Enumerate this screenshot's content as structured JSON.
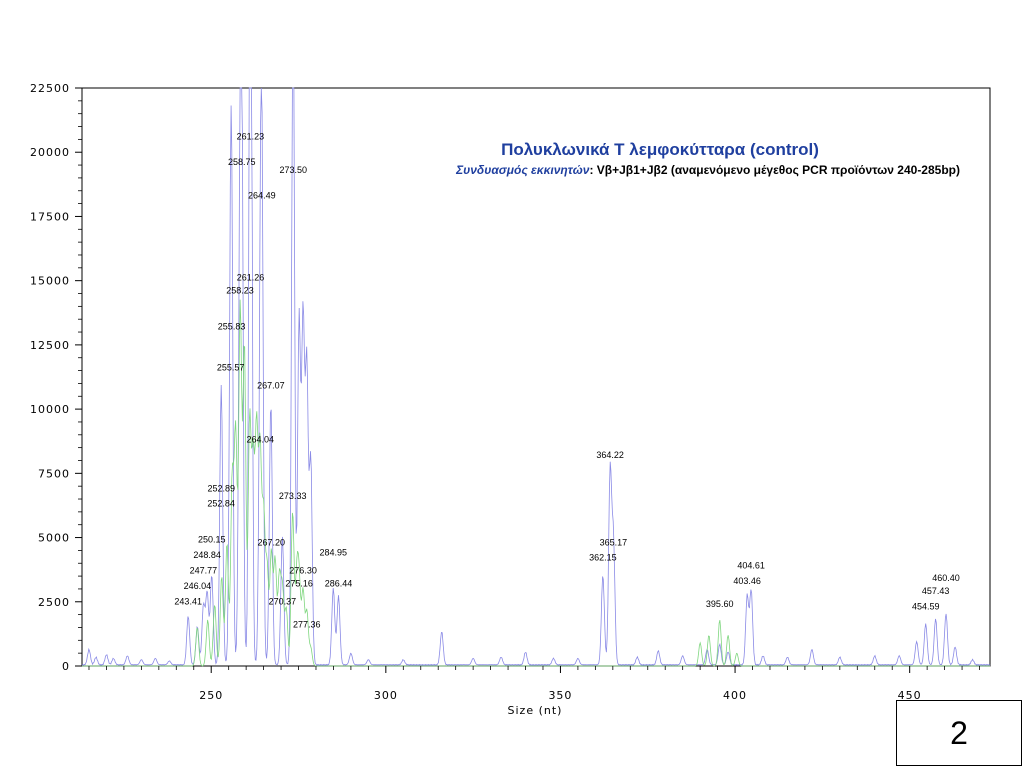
{
  "chart_data": {
    "type": "line",
    "title": "Πολυκλωνικά Τ λεμφοκύτταρα (control)",
    "subtitle_label": "Συνδυασμός εκκινητών",
    "subtitle_text": ": Vβ+Jβ1+Jβ2 (αναμενόμενο μέγεθος PCR προϊόντων 240-285bp)",
    "xlabel": "Size (nt)",
    "ylabel": "",
    "xlim": [
      213,
      473
    ],
    "ylim": [
      0,
      22500
    ],
    "x_ticks": [
      250,
      300,
      350,
      400,
      450
    ],
    "y_ticks": [
      0,
      2500,
      5000,
      7500,
      10000,
      12500,
      15000,
      17500,
      20000,
      22500
    ],
    "x_tick_labels": [
      "250",
      "300",
      "350",
      "400",
      "450"
    ],
    "y_tick_labels": [
      "0",
      "2500",
      "5000",
      "7500",
      "10000",
      "12500",
      "15000",
      "17500",
      "20000",
      "22500"
    ],
    "grid": false,
    "colors": {
      "blue_trace": "#8a8ae6",
      "green_trace": "#7fd67f",
      "title": "#1f3f9f"
    },
    "series": [
      {
        "color": "blue",
        "peaks": [
          [
            215,
            600
          ],
          [
            217,
            300
          ],
          [
            220,
            400
          ],
          [
            222,
            250
          ],
          [
            226,
            350
          ],
          [
            230,
            200
          ],
          [
            234,
            250
          ],
          [
            238,
            150
          ],
          [
            243.41,
            1900
          ],
          [
            246.04,
            1500
          ],
          [
            247.77,
            2300
          ],
          [
            248.84,
            2800
          ],
          [
            250.15,
            3500
          ],
          [
            252.84,
            5600
          ],
          [
            252.89,
            5300
          ],
          [
            255.57,
            10200
          ],
          [
            255.83,
            12700
          ],
          [
            258.23,
            14300
          ],
          [
            258.75,
            18900
          ],
          [
            261.23,
            20000
          ],
          [
            261.26,
            14900
          ],
          [
            264.04,
            9000
          ],
          [
            264.49,
            17700
          ],
          [
            267.07,
            10200
          ],
          [
            270.37,
            5000
          ],
          [
            273.33,
            7500
          ],
          [
            273.5,
            18700
          ],
          [
            275.16,
            13500
          ],
          [
            276.3,
            13400
          ],
          [
            277.36,
            11600
          ],
          [
            278.5,
            8000
          ],
          [
            284.95,
            3000
          ],
          [
            286.44,
            2700
          ],
          [
            290,
            450
          ],
          [
            295,
            200
          ],
          [
            305,
            200
          ],
          [
            316,
            1300
          ],
          [
            325,
            250
          ],
          [
            333,
            300
          ],
          [
            340,
            500
          ],
          [
            348,
            250
          ],
          [
            355,
            250
          ],
          [
            362.15,
            3500
          ],
          [
            364.22,
            7500
          ],
          [
            365.17,
            4800
          ],
          [
            372,
            300
          ],
          [
            378,
            550
          ],
          [
            385,
            350
          ],
          [
            392,
            600
          ],
          [
            395.6,
            800
          ],
          [
            398,
            500
          ],
          [
            403.46,
            2700
          ],
          [
            404.61,
            2900
          ],
          [
            408,
            350
          ],
          [
            415,
            300
          ],
          [
            422,
            600
          ],
          [
            430,
            300
          ],
          [
            440,
            350
          ],
          [
            447,
            350
          ],
          [
            452,
            900
          ],
          [
            454.59,
            1600
          ],
          [
            457.43,
            1800
          ],
          [
            460.4,
            2000
          ],
          [
            463,
            700
          ],
          [
            468,
            200
          ]
        ]
      },
      {
        "color": "green",
        "peaks": [
          [
            246,
            1500
          ],
          [
            249,
            1800
          ],
          [
            251,
            2400
          ],
          [
            253,
            3500
          ],
          [
            254.5,
            4800
          ],
          [
            256,
            7200
          ],
          [
            257,
            9000
          ],
          [
            258.3,
            14000
          ],
          [
            259.5,
            12500
          ],
          [
            261,
            9500
          ],
          [
            262,
            7800
          ],
          [
            263,
            9000
          ],
          [
            264,
            8200
          ],
          [
            265,
            5800
          ],
          [
            266,
            3800
          ],
          [
            267.2,
            4400
          ],
          [
            268.3,
            4100
          ],
          [
            269.5,
            3400
          ],
          [
            270.4,
            2900
          ],
          [
            271.5,
            2200
          ],
          [
            273.3,
            6000
          ],
          [
            274.5,
            3300
          ],
          [
            275.2,
            3000
          ],
          [
            276.3,
            2900
          ],
          [
            277.4,
            2100
          ],
          [
            278.5,
            700
          ],
          [
            390,
            900
          ],
          [
            392.5,
            1200
          ],
          [
            395.6,
            1800
          ],
          [
            398,
            1200
          ],
          [
            400.5,
            500
          ]
        ]
      }
    ],
    "peak_labels": [
      {
        "label": "261.23",
        "x": 261.23,
        "y": 20500
      },
      {
        "label": "258.75",
        "x": 258.75,
        "y": 19500
      },
      {
        "label": "273.50",
        "x": 273.5,
        "y": 19200
      },
      {
        "label": "264.49",
        "x": 264.49,
        "y": 18200
      },
      {
        "label": "261.26",
        "x": 261.26,
        "y": 15000
      },
      {
        "label": "258.23",
        "x": 258.23,
        "y": 14500
      },
      {
        "label": "255.83",
        "x": 255.83,
        "y": 13100
      },
      {
        "label": "255.57",
        "x": 255.57,
        "y": 11500
      },
      {
        "label": "267.07",
        "x": 267.07,
        "y": 10800
      },
      {
        "label": "264.04",
        "x": 264.04,
        "y": 8700
      },
      {
        "label": "364.22",
        "x": 364.22,
        "y": 8100
      },
      {
        "label": "252.89",
        "x": 252.89,
        "y": 6800
      },
      {
        "label": "273.33",
        "x": 273.33,
        "y": 6500
      },
      {
        "label": "252.84",
        "x": 252.84,
        "y": 6200
      },
      {
        "label": "250.15",
        "x": 250.15,
        "y": 4800
      },
      {
        "label": "267.20",
        "x": 267.2,
        "y": 4700
      },
      {
        "label": "365.17",
        "x": 365.17,
        "y": 4700
      },
      {
        "label": "248.84",
        "x": 248.84,
        "y": 4200
      },
      {
        "label": "284.95",
        "x": 284.95,
        "y": 4300
      },
      {
        "label": "362.15",
        "x": 362.15,
        "y": 4100
      },
      {
        "label": "404.61",
        "x": 404.61,
        "y": 3800
      },
      {
        "label": "247.77",
        "x": 247.77,
        "y": 3600
      },
      {
        "label": "276.30",
        "x": 276.3,
        "y": 3600
      },
      {
        "label": "403.46",
        "x": 403.46,
        "y": 3200
      },
      {
        "label": "460.40",
        "x": 460.4,
        "y": 3300
      },
      {
        "label": "246.04",
        "x": 246.04,
        "y": 3000
      },
      {
        "label": "275.16",
        "x": 275.16,
        "y": 3100
      },
      {
        "label": "286.44",
        "x": 286.44,
        "y": 3100
      },
      {
        "label": "457.43",
        "x": 457.43,
        "y": 2800
      },
      {
        "label": "270.37",
        "x": 270.37,
        "y": 2400
      },
      {
        "label": "243.41",
        "x": 243.41,
        "y": 2400
      },
      {
        "label": "395.60",
        "x": 395.6,
        "y": 2300
      },
      {
        "label": "454.59",
        "x": 454.59,
        "y": 2200
      },
      {
        "label": "277.36",
        "x": 277.36,
        "y": 1500
      }
    ]
  },
  "slide_number": "2"
}
